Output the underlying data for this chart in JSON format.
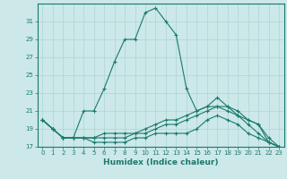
{
  "xlabel": "Humidex (Indice chaleur)",
  "ylabel": "",
  "background_color": "#cce8e8",
  "grid_color": "#aed4d4",
  "line_color": "#1a7a6e",
  "xlim": [
    -0.5,
    23.5
  ],
  "ylim": [
    17,
    33
  ],
  "yticks": [
    17,
    19,
    21,
    23,
    25,
    27,
    29,
    31
  ],
  "xticks": [
    0,
    1,
    2,
    3,
    4,
    5,
    6,
    7,
    8,
    9,
    10,
    11,
    12,
    13,
    14,
    15,
    16,
    17,
    18,
    19,
    20,
    21,
    22,
    23
  ],
  "lines": [
    {
      "x": [
        0,
        1,
        2,
        3,
        4,
        5,
        6,
        7,
        8,
        9,
        10,
        11,
        12,
        13,
        14,
        15,
        16,
        17,
        18,
        19,
        20,
        21,
        22,
        23
      ],
      "y": [
        20.0,
        19.0,
        18.0,
        18.0,
        21.0,
        21.0,
        23.5,
        26.5,
        29.0,
        29.0,
        32.0,
        32.5,
        31.0,
        29.5,
        23.5,
        21.0,
        21.5,
        22.5,
        21.5,
        21.0,
        20.0,
        19.5,
        17.5,
        17.0
      ]
    },
    {
      "x": [
        0,
        1,
        2,
        3,
        4,
        5,
        6,
        7,
        8,
        9,
        10,
        11,
        12,
        13,
        14,
        15,
        16,
        17,
        18,
        19,
        20,
        21,
        22,
        23
      ],
      "y": [
        20.0,
        19.0,
        18.0,
        18.0,
        18.0,
        18.0,
        18.5,
        18.5,
        18.5,
        18.5,
        19.0,
        19.5,
        20.0,
        20.0,
        20.5,
        21.0,
        21.5,
        21.5,
        21.5,
        20.5,
        20.0,
        19.5,
        18.0,
        17.0
      ]
    },
    {
      "x": [
        0,
        1,
        2,
        3,
        4,
        5,
        6,
        7,
        8,
        9,
        10,
        11,
        12,
        13,
        14,
        15,
        16,
        17,
        18,
        19,
        20,
        21,
        22,
        23
      ],
      "y": [
        20.0,
        19.0,
        18.0,
        18.0,
        18.0,
        18.0,
        18.0,
        18.0,
        18.0,
        18.5,
        18.5,
        19.0,
        19.5,
        19.5,
        20.0,
        20.5,
        21.0,
        21.5,
        21.0,
        20.5,
        19.5,
        18.5,
        17.5,
        17.0
      ]
    },
    {
      "x": [
        0,
        1,
        2,
        3,
        4,
        5,
        6,
        7,
        8,
        9,
        10,
        11,
        12,
        13,
        14,
        15,
        16,
        17,
        18,
        19,
        20,
        21,
        22,
        23
      ],
      "y": [
        20.0,
        19.0,
        18.0,
        18.0,
        18.0,
        17.5,
        17.5,
        17.5,
        17.5,
        18.0,
        18.0,
        18.5,
        18.5,
        18.5,
        18.5,
        19.0,
        20.0,
        20.5,
        20.0,
        19.5,
        18.5,
        18.0,
        17.5,
        17.0
      ]
    }
  ]
}
